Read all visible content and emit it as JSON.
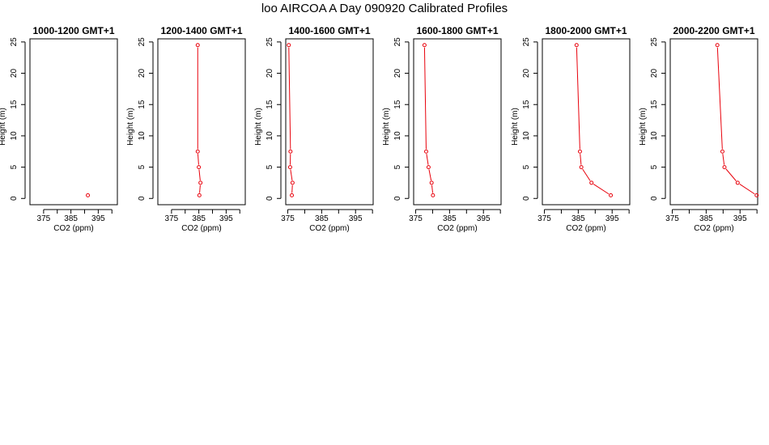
{
  "page": {
    "title": "loo AIRCOA A  Day 090920  Calibrated Profiles"
  },
  "style": {
    "series_color": "#e8000b",
    "axis_color": "#000000"
  },
  "chart_data": [
    {
      "type": "line",
      "title": "1000-1200 GMT+1",
      "xlabel": "CO2 (ppm)",
      "ylabel": "Height (m)",
      "xlim": [
        370,
        402
      ],
      "ylim": [
        -1,
        25.5
      ],
      "xticks": [
        375,
        380,
        385,
        390,
        395,
        400
      ],
      "xtick_labels": [
        "375",
        "",
        "385",
        "",
        "395",
        ""
      ],
      "yticks": [
        0,
        5,
        10,
        15,
        20,
        25
      ],
      "ytick_labels": [
        "0",
        "5",
        "10",
        "15",
        "20",
        "25"
      ],
      "series": [
        {
          "x": [
            391.2
          ],
          "y": [
            0.5
          ]
        }
      ]
    },
    {
      "type": "line",
      "title": "1200-1400 GMT+1",
      "xlabel": "CO2 (ppm)",
      "ylabel": "Height (m)",
      "xlim": [
        370,
        402
      ],
      "ylim": [
        -1,
        25.5
      ],
      "xticks": [
        375,
        380,
        385,
        390,
        395,
        400
      ],
      "xtick_labels": [
        "375",
        "",
        "385",
        "",
        "395",
        ""
      ],
      "yticks": [
        0,
        5,
        10,
        15,
        20,
        25
      ],
      "ytick_labels": [
        "0",
        "5",
        "10",
        "15",
        "20",
        "25"
      ],
      "series": [
        {
          "x": [
            384.6,
            384.6,
            385.0,
            385.6,
            385.2
          ],
          "y": [
            24.5,
            7.5,
            5.0,
            2.5,
            0.5
          ]
        }
      ]
    },
    {
      "type": "line",
      "title": "1400-1600 GMT+1",
      "xlabel": "CO2 (ppm)",
      "ylabel": "Height (m)",
      "xlim": [
        374.4,
        400.2
      ],
      "ylim": [
        -1,
        25.5
      ],
      "xticks": [
        375,
        380,
        385,
        390,
        395,
        400
      ],
      "xtick_labels": [
        "375",
        "",
        "385",
        "",
        "395",
        ""
      ],
      "yticks": [
        0,
        5,
        10,
        15,
        20,
        25
      ],
      "ytick_labels": [
        "0",
        "5",
        "10",
        "15",
        "20",
        "25"
      ],
      "series": [
        {
          "x": [
            375.3,
            375.8,
            375.7,
            376.4,
            376.2
          ],
          "y": [
            24.5,
            7.5,
            5.0,
            2.5,
            0.5
          ]
        }
      ]
    },
    {
      "type": "line",
      "title": "1600-1800 GMT+1",
      "xlabel": "CO2 (ppm)",
      "ylabel": "Height (m)",
      "xlim": [
        374.4,
        400.2
      ],
      "ylim": [
        -1,
        25.5
      ],
      "xticks": [
        375,
        380,
        385,
        390,
        395,
        400
      ],
      "xtick_labels": [
        "375",
        "",
        "385",
        "",
        "395",
        ""
      ],
      "yticks": [
        0,
        5,
        10,
        15,
        20,
        25
      ],
      "ytick_labels": [
        "0",
        "5",
        "10",
        "15",
        "20",
        "25"
      ],
      "series": [
        {
          "x": [
            377.6,
            378.1,
            378.8,
            379.7,
            380.1
          ],
          "y": [
            24.5,
            7.5,
            5.0,
            2.5,
            0.5
          ]
        }
      ]
    },
    {
      "type": "line",
      "title": "1800-2000 GMT+1",
      "xlabel": "CO2 (ppm)",
      "ylabel": "Height (m)",
      "xlim": [
        374.4,
        400.2
      ],
      "ylim": [
        -1,
        25.5
      ],
      "xticks": [
        375,
        380,
        385,
        390,
        395,
        400
      ],
      "xtick_labels": [
        "375",
        "",
        "385",
        "",
        "395",
        ""
      ],
      "yticks": [
        0,
        5,
        10,
        15,
        20,
        25
      ],
      "ytick_labels": [
        "0",
        "5",
        "10",
        "15",
        "20",
        "25"
      ],
      "series": [
        {
          "x": [
            384.5,
            385.5,
            385.9,
            388.9,
            394.6
          ],
          "y": [
            24.5,
            7.5,
            5.0,
            2.5,
            0.5
          ]
        }
      ]
    },
    {
      "type": "line",
      "title": "2000-2200 GMT+1",
      "xlabel": "CO2 (ppm)",
      "ylabel": "Height (m)",
      "xlim": [
        374.4,
        400.2
      ],
      "ylim": [
        -1,
        25.5
      ],
      "xticks": [
        375,
        380,
        385,
        390,
        395,
        400
      ],
      "xtick_labels": [
        "375",
        "",
        "385",
        "",
        "395",
        ""
      ],
      "yticks": [
        0,
        5,
        10,
        15,
        20,
        25
      ],
      "ytick_labels": [
        "0",
        "5",
        "10",
        "15",
        "20",
        "25"
      ],
      "series": [
        {
          "x": [
            388.3,
            389.8,
            390.4,
            394.3,
            399.9
          ],
          "y": [
            24.5,
            7.5,
            5.0,
            2.5,
            0.5
          ]
        }
      ]
    }
  ]
}
